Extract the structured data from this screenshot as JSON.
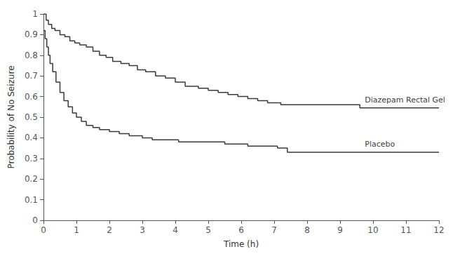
{
  "chart_data": {
    "type": "step",
    "xlabel": "Time (h)",
    "ylabel": "Probability of No Seizure",
    "xlim": [
      0,
      12
    ],
    "ylim": [
      0,
      1.0
    ],
    "xticks": [
      0,
      1,
      2,
      3,
      4,
      5,
      6,
      7,
      8,
      9,
      10,
      11,
      12
    ],
    "yticks": [
      0,
      0.1,
      0.2,
      0.3,
      0.4,
      0.5,
      0.6,
      0.7,
      0.8,
      0.9,
      1
    ],
    "grid": false,
    "series": [
      {
        "color": "#3a3a3a",
        "x": [
          0,
          0.08,
          0.15,
          0.25,
          0.35,
          0.5,
          0.65,
          0.8,
          0.95,
          1.1,
          1.3,
          1.5,
          1.7,
          1.9,
          2.1,
          2.35,
          2.6,
          2.85,
          3.1,
          3.4,
          3.7,
          4.0,
          4.3,
          4.7,
          5.0,
          5.3,
          5.6,
          5.9,
          6.2,
          6.5,
          6.8,
          7.2,
          9.4,
          9.6,
          12.0
        ],
        "values": [
          1.0,
          0.97,
          0.95,
          0.93,
          0.92,
          0.9,
          0.89,
          0.87,
          0.86,
          0.85,
          0.84,
          0.82,
          0.8,
          0.79,
          0.77,
          0.76,
          0.75,
          0.73,
          0.72,
          0.7,
          0.69,
          0.67,
          0.65,
          0.64,
          0.63,
          0.62,
          0.61,
          0.6,
          0.59,
          0.58,
          0.57,
          0.56,
          0.56,
          0.545,
          0.545
        ]
      },
      {
        "color": "#3a3a3a",
        "x": [
          0,
          0.05,
          0.1,
          0.15,
          0.2,
          0.28,
          0.38,
          0.5,
          0.62,
          0.75,
          0.88,
          1.0,
          1.15,
          1.3,
          1.5,
          1.7,
          2.0,
          2.3,
          2.6,
          3.0,
          3.3,
          3.8,
          4.1,
          4.5,
          4.9,
          5.5,
          5.8,
          6.2,
          7.1,
          7.4,
          12.0
        ],
        "values": [
          0.92,
          0.88,
          0.84,
          0.8,
          0.76,
          0.72,
          0.67,
          0.62,
          0.58,
          0.55,
          0.52,
          0.5,
          0.48,
          0.46,
          0.45,
          0.44,
          0.43,
          0.42,
          0.41,
          0.4,
          0.39,
          0.39,
          0.38,
          0.38,
          0.38,
          0.37,
          0.37,
          0.36,
          0.35,
          0.33,
          0.33
        ]
      }
    ],
    "annotations": [
      {
        "text": "Diazepam Rectal Gel",
        "x": 9.75,
        "y": 0.585
      },
      {
        "text": "Placebo",
        "x": 9.75,
        "y": 0.368
      }
    ]
  }
}
